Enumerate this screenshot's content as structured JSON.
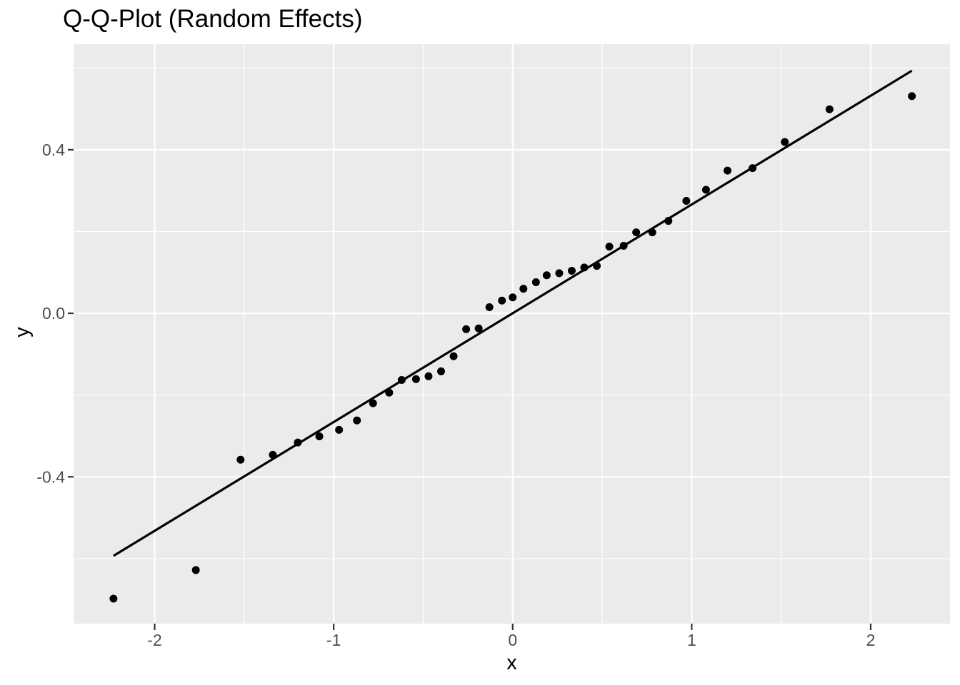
{
  "title": "Q-Q-Plot (Random Effects)",
  "style": {
    "plot_bg": "#FFFFFF",
    "panel_bg": "#EBEBEB",
    "grid_color": "#FFFFFF",
    "point_color": "#000000",
    "line_color": "#000000",
    "tick_mark_color": "#333333",
    "tick_label_color": "#4D4D4D",
    "title_color": "#000000"
  },
  "chart_data": {
    "type": "scatter",
    "title": "Q-Q-Plot (Random Effects)",
    "xlabel": "x",
    "ylabel": "y",
    "xlim": [
      -2.453,
      2.443
    ],
    "ylim": [
      -0.759,
      0.658
    ],
    "grid": true,
    "legend": "none",
    "axes": {
      "x": {
        "major_ticks": [
          -2,
          -1,
          0,
          1,
          2
        ],
        "major_labels": [
          "-2",
          "-1",
          "0",
          "1",
          "2"
        ],
        "minor_ticks": [
          -1.5,
          -0.5,
          0.5,
          1.5
        ]
      },
      "y": {
        "major_ticks": [
          0.4,
          0.0,
          -0.4
        ],
        "major_labels": [
          "0.4",
          "0.0",
          "-0.4"
        ],
        "minor_ticks": [
          0.6,
          0.2,
          -0.2,
          -0.6
        ]
      }
    },
    "points": {
      "x": [
        -2.23,
        -1.77,
        -1.52,
        -1.34,
        -1.2,
        -1.08,
        -0.97,
        -0.87,
        -0.78,
        -0.69,
        -0.62,
        -0.54,
        -0.47,
        -0.4,
        -0.33,
        -0.26,
        -0.19,
        -0.13,
        -0.06,
        0.0,
        0.06,
        0.13,
        0.19,
        0.26,
        0.33,
        0.4,
        0.47,
        0.54,
        0.62,
        0.69,
        0.78,
        0.87,
        0.97,
        1.08,
        1.2,
        1.34,
        1.52,
        1.77,
        2.23
      ],
      "y": [
        -0.698,
        -0.628,
        -0.358,
        -0.346,
        -0.316,
        -0.301,
        -0.285,
        -0.262,
        -0.22,
        -0.194,
        -0.163,
        -0.161,
        -0.154,
        -0.142,
        -0.105,
        -0.039,
        -0.037,
        0.015,
        0.031,
        0.039,
        0.06,
        0.076,
        0.093,
        0.098,
        0.104,
        0.112,
        0.116,
        0.163,
        0.165,
        0.198,
        0.198,
        0.226,
        0.275,
        0.302,
        0.349,
        0.355,
        0.419,
        0.499,
        0.531
      ]
    },
    "reference_line": {
      "slope": 0.266,
      "intercept": 0.0,
      "x_start": -2.23,
      "x_end": 2.23
    }
  }
}
